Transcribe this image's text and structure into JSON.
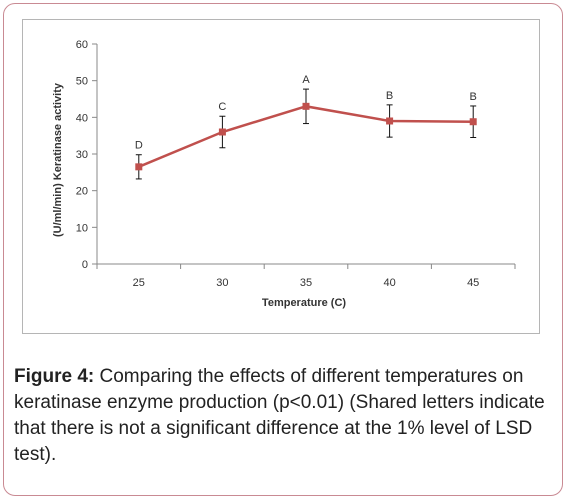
{
  "chart_data": {
    "type": "line",
    "xlabel": "Temperature (C)",
    "ylabel": "(U/ml/min) Keratinase activity",
    "ylim": [
      0,
      60
    ],
    "yticks": [
      0,
      10,
      20,
      30,
      40,
      50,
      60
    ],
    "categories": [
      "25",
      "30",
      "35",
      "40",
      "45"
    ],
    "grid": false,
    "series": [
      {
        "values": [
          26.5,
          36,
          43,
          39,
          38.8
        ],
        "errors": [
          3.3,
          4.3,
          4.7,
          4.4,
          4.3
        ],
        "labels": [
          "D",
          "C",
          "A",
          "B",
          "B"
        ],
        "color": "#c0504d"
      }
    ]
  },
  "caption": {
    "label": "Figure 4:",
    "text": " Comparing the effects of different temperatures on keratinase enzyme production (p<0.01) (Shared letters indicate that there is not a significant difference at the 1% level of LSD test)."
  },
  "colors": {
    "border": "#c98a93",
    "line": "#c0504d"
  }
}
